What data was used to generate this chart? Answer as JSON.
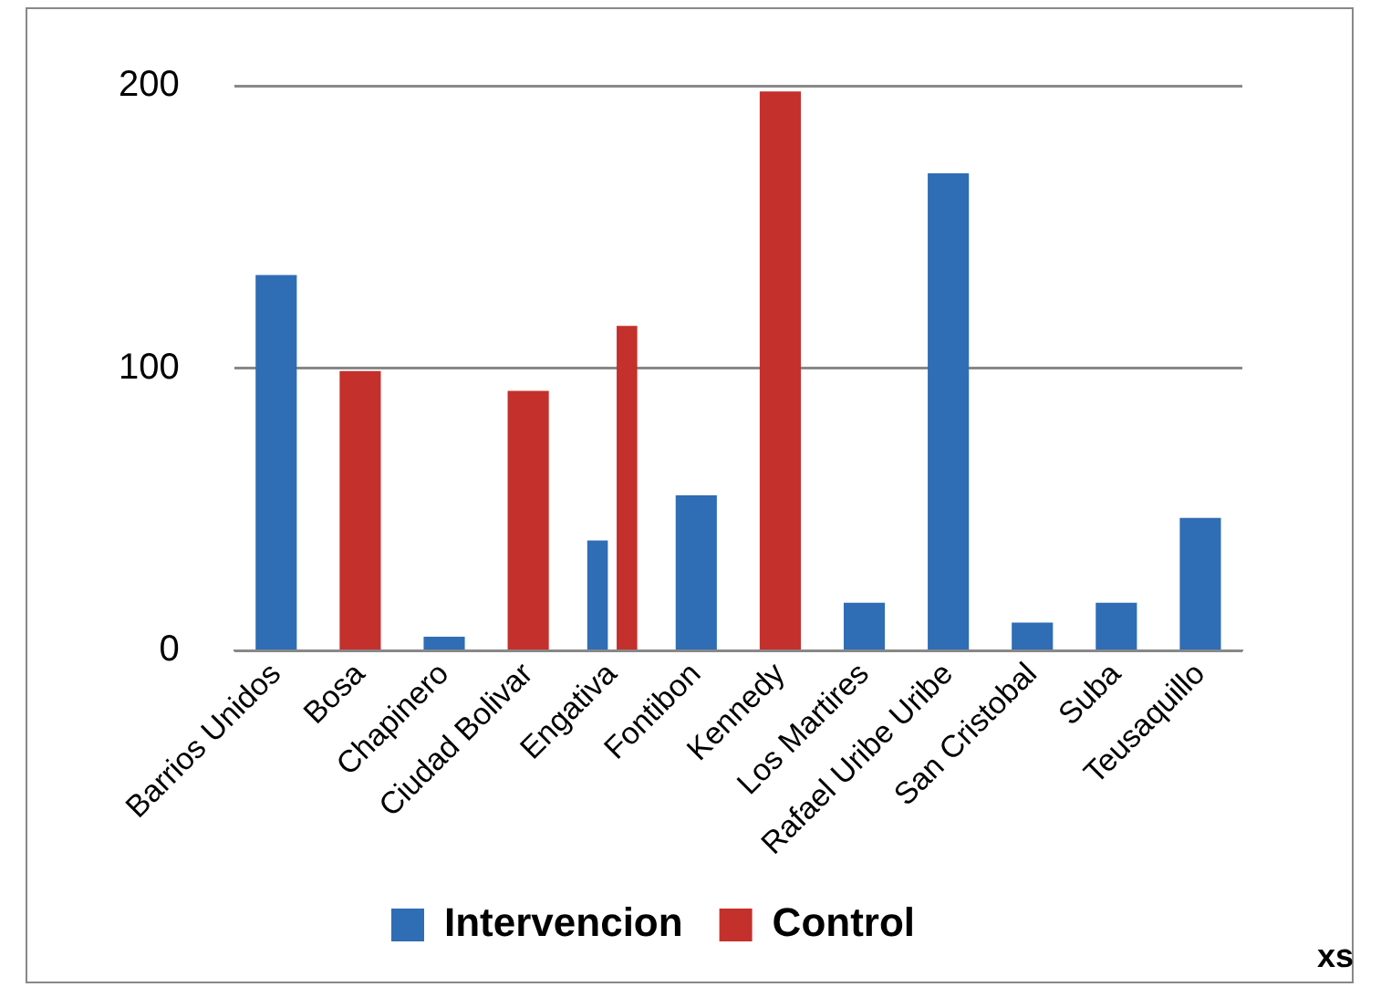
{
  "chart_data": {
    "type": "bar",
    "categories": [
      "Barrios Unidos",
      "Bosa",
      "Chapinero",
      "Ciudad Bolivar",
      "Engativa",
      "Fontibon",
      "Kennedy",
      "Los Martires",
      "Rafael Uribe Uribe",
      "San Cristobal",
      "Suba",
      "Teusaquillo"
    ],
    "series": [
      {
        "name": "Intervencion",
        "color": "#2f6db5",
        "values": [
          133,
          null,
          5,
          null,
          39,
          55,
          null,
          17,
          169,
          10,
          17,
          47
        ]
      },
      {
        "name": "Control",
        "color": "#c4302c",
        "values": [
          null,
          99,
          null,
          92,
          115,
          null,
          198,
          null,
          null,
          null,
          null,
          null
        ]
      }
    ],
    "ylim": [
      0,
      200
    ],
    "yticks": [
      0,
      100,
      200
    ],
    "grid": "y",
    "legend": "bottom",
    "annotations": [
      "xs"
    ]
  }
}
